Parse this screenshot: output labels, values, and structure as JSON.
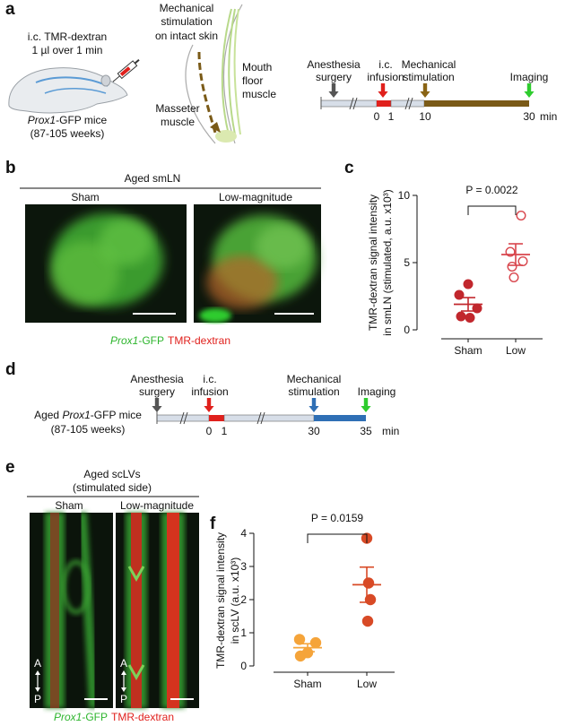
{
  "panel_labels": [
    "a",
    "b",
    "c",
    "d",
    "e",
    "f"
  ],
  "a": {
    "injection": [
      "i.c. TMR-dextran",
      "1 µl over 1 min"
    ],
    "mice": {
      "italic": "Prox1",
      "text": "-GFP mice"
    },
    "age": "(87-105 weeks)",
    "stimulation": [
      "Mechanical",
      "stimulation",
      "on intact skin"
    ],
    "masseter": [
      "Masseter",
      "muscle"
    ],
    "mouth_floor": [
      "Mouth",
      "floor",
      "muscle"
    ],
    "timeline": {
      "steps": [
        [
          "Anesthesia",
          "surgery"
        ],
        [
          "i.c.",
          "infusion"
        ],
        [
          "Mechanical",
          "stimulation"
        ],
        [
          "Imaging"
        ]
      ],
      "ticks": [
        0,
        1,
        10,
        30
      ],
      "unit": "min"
    }
  },
  "b": {
    "title": "Aged smLN",
    "conditions": [
      "Sham",
      "Low-magnitude"
    ],
    "legend": {
      "gfp_italic": "Prox1",
      "gfp": "-GFP",
      "tmr": "TMR-dextran"
    }
  },
  "d": {
    "mice": {
      "italic": "Prox1",
      "text": "-GFP mice"
    },
    "prefix": "Aged ",
    "age": "(87-105 weeks)",
    "timeline": {
      "steps": [
        [
          "Anesthesia",
          "surgery"
        ],
        [
          "i.c.",
          "infusion"
        ],
        [
          "Mechanical",
          "stimulation"
        ],
        [
          "Imaging"
        ]
      ],
      "ticks": [
        0,
        1,
        30,
        35
      ],
      "unit": "min"
    }
  },
  "e": {
    "title": [
      "Aged scLVs",
      "(stimulated side)"
    ],
    "conditions": [
      "Sham",
      "Low-magnitude"
    ],
    "axis": [
      "A",
      "P"
    ],
    "legend": {
      "gfp_italic": "Prox1",
      "gfp": "-GFP",
      "tmr": "TMR-dextran"
    }
  },
  "chart_data": [
    {
      "type": "scatter",
      "ylabel": [
        "TMR-dextran signal intensity",
        "in smLN (stimulated, a.u. x10³)"
      ],
      "categories": [
        "Sham",
        "Low"
      ],
      "points": [
        [
          3.4,
          2.6,
          1.6,
          1.0,
          0.9
        ],
        [
          8.5,
          5.8,
          5.1,
          4.7,
          3.9
        ]
      ],
      "means": [
        1.9,
        5.6
      ],
      "sem": [
        0.5,
        0.8
      ],
      "colors": [
        "#c1272d",
        "#d8454c"
      ],
      "filled": [
        true,
        false
      ],
      "p_label": "P = 0.0022",
      "ylim": [
        0,
        10
      ],
      "yticks": [
        0,
        5,
        10
      ]
    },
    {
      "type": "scatter",
      "ylabel": [
        "TMR-dextran signal intensity",
        "in scLV (a.u. x10³)"
      ],
      "categories": [
        "Sham",
        "Low"
      ],
      "points": [
        [
          0.8,
          0.7,
          0.4,
          0.3
        ],
        [
          3.85,
          2.5,
          2.0,
          1.35
        ]
      ],
      "means": [
        0.55,
        2.45
      ],
      "sem": [
        0.12,
        0.53
      ],
      "colors": [
        "#f5a43a",
        "#d84a26"
      ],
      "filled": [
        true,
        true
      ],
      "p_label": "P = 0.0159",
      "ylim": [
        0,
        4
      ],
      "yticks": [
        0,
        1,
        2,
        3,
        4
      ]
    }
  ]
}
